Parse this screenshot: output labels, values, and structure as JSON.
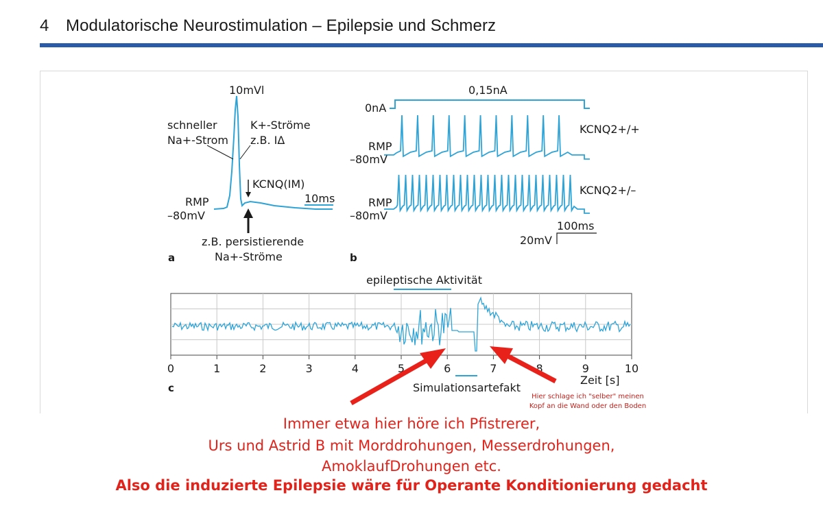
{
  "header": {
    "chapter_number": "4",
    "chapter_title": "Modulatorische Neurostimulation – Epilepsie und Schmerz"
  },
  "panel_a": {
    "label": "a",
    "scale_voltage": "10mVl",
    "na_label_line1": "schneller",
    "na_label_line2": "Na+-Strom",
    "k_label_line1": "K+-Ströme",
    "k_label_line2": "z.B. IΔ",
    "kcnq_label": "KCNQ(IM)",
    "scale_time": "10ms",
    "rmp": "RMP",
    "rmp_value": "–80mV",
    "persistent_line1": "z.B. persistierende",
    "persistent_line2": "Na+-Ströme"
  },
  "panel_b": {
    "label": "b",
    "current_zero": "0nA",
    "current_step": "0,15nA",
    "trace1_label": "KCNQ2+/+",
    "trace2_label": "KCNQ2+/–",
    "rmp": "RMP",
    "rmp_value": "–80mV",
    "scale_time": "100ms",
    "scale_voltage": "20mV"
  },
  "panel_c": {
    "label": "c",
    "activity_label": "epileptische Aktivität",
    "artifact_label": "Simulationsartefakt",
    "x_axis_label": "Zeit [s]",
    "x_ticks": [
      "0",
      "1",
      "2",
      "3",
      "4",
      "5",
      "6",
      "7",
      "8",
      "9",
      "10"
    ]
  },
  "chart_data": {
    "type": "line",
    "title": "",
    "xlabel": "Zeit [s]",
    "ylabel": "",
    "xlim": [
      0,
      10
    ],
    "x_ticks": [
      0,
      1,
      2,
      3,
      4,
      5,
      6,
      7,
      8,
      9,
      10
    ],
    "grid": true,
    "annotations": [
      {
        "text": "epileptische Aktivität",
        "x_range": [
          4.9,
          6.1
        ]
      },
      {
        "text": "Simulationsartefakt",
        "x_range": [
          6.1,
          6.7
        ]
      }
    ]
  },
  "annotation": {
    "small_note_line1": "Hier schlage ich \"selber\" meinen",
    "small_note_line2": "Kopf an die Wand oder den Boden",
    "line1": "Immer etwa hier höre ich Pfistrerer,",
    "line2": "Urs und Astrid B mit Morddrohungen, Messerdrohungen,",
    "line3": "AmoklaufDrohungen etc.",
    "line4_bold": "Also die induzierte Epilepsie wäre für Operante Konditionierung gedacht"
  },
  "colors": {
    "trace": "#2ea3d6",
    "header_rule": "#2a5ba8",
    "annotation": "#e0241c",
    "arrow": "#e8221b"
  }
}
